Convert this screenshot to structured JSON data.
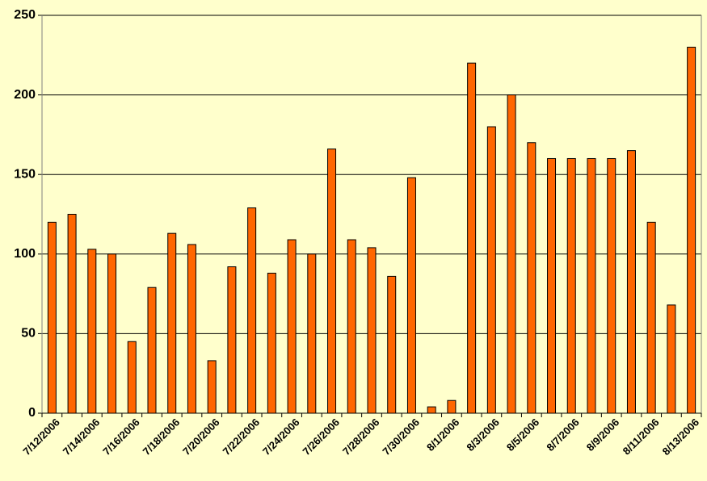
{
  "chart_data": {
    "type": "bar",
    "categories": [
      "7/12/2006",
      null,
      "7/14/2006",
      null,
      "7/16/2006",
      null,
      "7/18/2006",
      null,
      "7/20/2006",
      null,
      "7/22/2006",
      null,
      "7/24/2006",
      null,
      "7/26/2006",
      null,
      "7/28/2006",
      null,
      "7/30/2006",
      null,
      "8/1/2006",
      null,
      "8/3/2006",
      null,
      "8/5/2006",
      null,
      "8/7/2006",
      null,
      "8/9/2006",
      null,
      "8/11/2006",
      null,
      "8/13/2006"
    ],
    "values": [
      120,
      125,
      103,
      100,
      45,
      79,
      113,
      106,
      33,
      92,
      129,
      88,
      109,
      100,
      166,
      109,
      104,
      86,
      148,
      4,
      8,
      220,
      180,
      200,
      170,
      160,
      160,
      160,
      160,
      165,
      120,
      68,
      230
    ],
    "color": "#ff6600",
    "ylim": [
      0,
      250
    ],
    "yticks": [
      0,
      50,
      100,
      150,
      200,
      250
    ],
    "grid": true
  }
}
